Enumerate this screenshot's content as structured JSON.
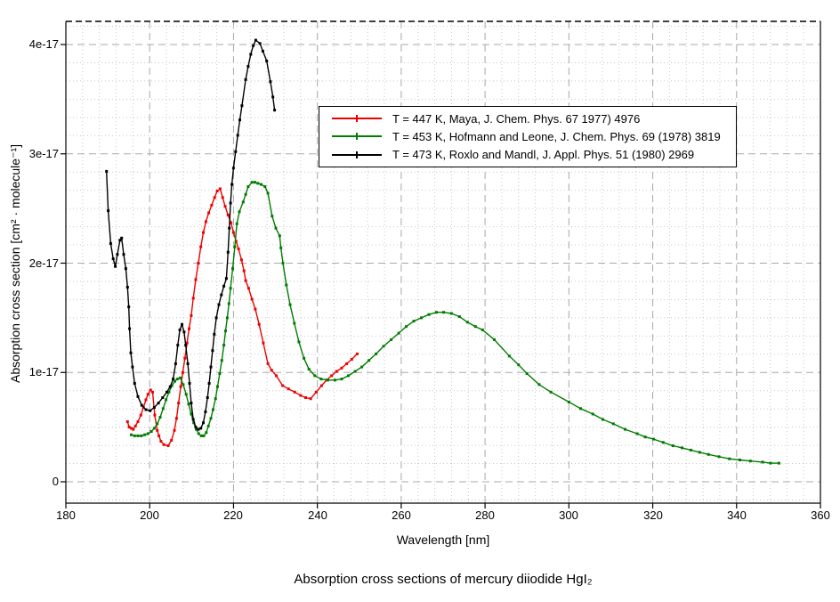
{
  "title": "Absorption cross sections of mercury diiodide HgI₂",
  "chart_data": {
    "type": "line",
    "title": "Absorption cross sections of mercury diiodide HgI₂",
    "xlabel": "Wavelength [nm]",
    "ylabel": "Absorption cross section [cm² · molecule⁻¹]",
    "xlim": [
      180,
      360
    ],
    "ylim": [
      0,
      4.2e-17
    ],
    "x_major_step_nm": 20,
    "x_minor_step_nm": 4,
    "y_major_step": "1e-17",
    "y_minors_per_major": 6,
    "grid": "major dashed gray + minor dotted light gray",
    "legend_position": "upper middle, boxed",
    "x_tick_labels": [
      "180",
      "200",
      "220",
      "240",
      "260",
      "280",
      "300",
      "320",
      "340",
      "360"
    ],
    "y_tick_labels": [
      "0",
      "1e-17",
      "2e-17",
      "3e-17",
      "4e-17"
    ],
    "values_unit": "1e-17 cm^2 / molecule",
    "series": [
      {
        "name": "T = 447 K, Maya, J. Chem. Phys. 67 1977) 4976",
        "color": "#ee0000",
        "marker": "square",
        "points": [
          [
            194.7,
            0.55
          ],
          [
            195.1,
            0.5
          ],
          [
            195.6,
            0.49
          ],
          [
            196.1,
            0.48
          ],
          [
            196.6,
            0.51
          ],
          [
            197.2,
            0.55
          ],
          [
            197.9,
            0.61
          ],
          [
            198.5,
            0.68
          ],
          [
            199.1,
            0.75
          ],
          [
            199.6,
            0.8
          ],
          [
            200.2,
            0.84
          ],
          [
            200.7,
            0.82
          ],
          [
            201.2,
            0.61
          ],
          [
            201.8,
            0.47
          ],
          [
            202.2,
            0.42
          ],
          [
            202.7,
            0.37
          ],
          [
            203.4,
            0.34
          ],
          [
            204.4,
            0.33
          ],
          [
            205.2,
            0.38
          ],
          [
            205.9,
            0.47
          ],
          [
            206.4,
            0.58
          ],
          [
            206.9,
            0.72
          ],
          [
            207.4,
            0.87
          ],
          [
            207.9,
            1.0
          ],
          [
            208.4,
            1.13
          ],
          [
            208.9,
            1.27
          ],
          [
            209.4,
            1.4
          ],
          [
            209.9,
            1.52
          ],
          [
            210.4,
            1.68
          ],
          [
            211.0,
            1.85
          ],
          [
            211.6,
            2.0
          ],
          [
            212.2,
            2.15
          ],
          [
            212.8,
            2.28
          ],
          [
            213.4,
            2.38
          ],
          [
            214.1,
            2.46
          ],
          [
            214.8,
            2.53
          ],
          [
            215.5,
            2.6
          ],
          [
            216.1,
            2.66
          ],
          [
            216.8,
            2.68
          ],
          [
            217.4,
            2.6
          ],
          [
            218.0,
            2.52
          ],
          [
            218.7,
            2.44
          ],
          [
            219.4,
            2.37
          ],
          [
            220.0,
            2.28
          ],
          [
            220.6,
            2.2
          ],
          [
            221.2,
            2.13
          ],
          [
            221.9,
            2.03
          ],
          [
            222.5,
            1.93
          ],
          [
            222.9,
            1.84
          ],
          [
            223.6,
            1.77
          ],
          [
            224.4,
            1.67
          ],
          [
            225.2,
            1.58
          ],
          [
            226.1,
            1.44
          ],
          [
            227.1,
            1.27
          ],
          [
            228.2,
            1.08
          ],
          [
            229.1,
            1.02
          ],
          [
            230.2,
            0.97
          ],
          [
            231.7,
            0.88
          ],
          [
            233.1,
            0.85
          ],
          [
            234.6,
            0.82
          ],
          [
            236.0,
            0.79
          ],
          [
            237.2,
            0.77
          ],
          [
            238.4,
            0.76
          ],
          [
            239.7,
            0.82
          ],
          [
            241.0,
            0.88
          ],
          [
            242.2,
            0.93
          ],
          [
            243.4,
            0.97
          ],
          [
            244.6,
            1.01
          ],
          [
            245.8,
            1.04
          ],
          [
            247.0,
            1.08
          ],
          [
            248.2,
            1.12
          ],
          [
            249.5,
            1.17
          ]
        ]
      },
      {
        "name": "T = 453 K, Hofmann and Leone, J. Chem. Phys. 69 (1978) 3819",
        "color": "#007c00",
        "marker": "square",
        "points": [
          [
            195.6,
            0.43
          ],
          [
            196.4,
            0.42
          ],
          [
            197.2,
            0.42
          ],
          [
            198.0,
            0.42
          ],
          [
            198.8,
            0.43
          ],
          [
            199.6,
            0.44
          ],
          [
            200.4,
            0.46
          ],
          [
            201.1,
            0.49
          ],
          [
            201.8,
            0.53
          ],
          [
            202.5,
            0.59
          ],
          [
            203.2,
            0.67
          ],
          [
            203.9,
            0.75
          ],
          [
            204.6,
            0.82
          ],
          [
            205.3,
            0.88
          ],
          [
            206.0,
            0.92
          ],
          [
            206.6,
            0.94
          ],
          [
            207.3,
            0.95
          ],
          [
            208.0,
            0.89
          ],
          [
            208.7,
            0.8
          ],
          [
            209.3,
            0.71
          ],
          [
            209.9,
            0.62
          ],
          [
            210.5,
            0.54
          ],
          [
            211.1,
            0.48
          ],
          [
            211.7,
            0.44
          ],
          [
            212.3,
            0.42
          ],
          [
            212.9,
            0.42
          ],
          [
            213.5,
            0.45
          ],
          [
            214.0,
            0.51
          ],
          [
            214.6,
            0.58
          ],
          [
            215.1,
            0.66
          ],
          [
            215.7,
            0.76
          ],
          [
            216.2,
            0.87
          ],
          [
            216.7,
            0.99
          ],
          [
            217.2,
            1.11
          ],
          [
            217.7,
            1.25
          ],
          [
            218.1,
            1.38
          ],
          [
            218.5,
            1.5
          ],
          [
            218.9,
            1.63
          ],
          [
            219.3,
            1.77
          ],
          [
            219.8,
            1.95
          ],
          [
            220.3,
            2.15
          ],
          [
            220.8,
            2.36
          ],
          [
            221.4,
            2.47
          ],
          [
            222.3,
            2.56
          ],
          [
            222.9,
            2.63
          ],
          [
            223.5,
            2.7
          ],
          [
            224.4,
            2.74
          ],
          [
            225.1,
            2.74
          ],
          [
            225.8,
            2.73
          ],
          [
            226.6,
            2.72
          ],
          [
            227.5,
            2.7
          ],
          [
            228.2,
            2.64
          ],
          [
            229.2,
            2.43
          ],
          [
            230.1,
            2.32
          ],
          [
            231.0,
            2.25
          ],
          [
            231.3,
            2.14
          ],
          [
            231.8,
            2.0
          ],
          [
            232.6,
            1.8
          ],
          [
            233.5,
            1.62
          ],
          [
            234.5,
            1.45
          ],
          [
            235.6,
            1.28
          ],
          [
            236.8,
            1.13
          ],
          [
            238.0,
            1.03
          ],
          [
            239.4,
            0.97
          ],
          [
            240.9,
            0.94
          ],
          [
            242.5,
            0.93
          ],
          [
            244.2,
            0.93
          ],
          [
            245.8,
            0.94
          ],
          [
            247.4,
            0.97
          ],
          [
            249.0,
            1.01
          ],
          [
            250.6,
            1.05
          ],
          [
            252.3,
            1.11
          ],
          [
            254.0,
            1.17
          ],
          [
            255.8,
            1.24
          ],
          [
            257.6,
            1.3
          ],
          [
            259.4,
            1.36
          ],
          [
            261.2,
            1.42
          ],
          [
            263.0,
            1.47
          ],
          [
            264.8,
            1.5
          ],
          [
            266.6,
            1.53
          ],
          [
            268.4,
            1.55
          ],
          [
            270.1,
            1.55
          ],
          [
            272.0,
            1.54
          ],
          [
            273.9,
            1.51
          ],
          [
            275.8,
            1.46
          ],
          [
            277.7,
            1.42
          ],
          [
            279.4,
            1.39
          ],
          [
            282.2,
            1.3
          ],
          [
            285.8,
            1.15
          ],
          [
            288.0,
            1.07
          ],
          [
            290.0,
            0.99
          ],
          [
            292.9,
            0.89
          ],
          [
            295.7,
            0.82
          ],
          [
            300.0,
            0.73
          ],
          [
            302.8,
            0.67
          ],
          [
            305.7,
            0.62
          ],
          [
            308.1,
            0.57
          ],
          [
            310.6,
            0.53
          ],
          [
            313.4,
            0.48
          ],
          [
            316.3,
            0.44
          ],
          [
            318.2,
            0.41
          ],
          [
            320.2,
            0.39
          ],
          [
            322.5,
            0.36
          ],
          [
            324.8,
            0.33
          ],
          [
            327.0,
            0.31
          ],
          [
            329.1,
            0.29
          ],
          [
            331.2,
            0.27
          ],
          [
            333.3,
            0.25
          ],
          [
            335.8,
            0.23
          ],
          [
            338.3,
            0.21
          ],
          [
            340.8,
            0.2
          ],
          [
            343.3,
            0.19
          ],
          [
            346.2,
            0.18
          ],
          [
            348.1,
            0.17
          ],
          [
            350.1,
            0.17
          ]
        ]
      },
      {
        "name": "T = 473 K, Roxlo and Mandl, J. Appl. Phys. 51 (1980) 2969",
        "color": "#000000",
        "marker": "square",
        "points": [
          [
            189.7,
            2.84
          ],
          [
            190.1,
            2.48
          ],
          [
            190.7,
            2.18
          ],
          [
            191.3,
            2.04
          ],
          [
            191.8,
            1.97
          ],
          [
            192.3,
            2.08
          ],
          [
            192.9,
            2.21
          ],
          [
            193.3,
            2.23
          ],
          [
            193.8,
            2.08
          ],
          [
            194.3,
            1.95
          ],
          [
            194.7,
            1.78
          ],
          [
            195.0,
            1.6
          ],
          [
            195.2,
            1.4
          ],
          [
            195.5,
            1.18
          ],
          [
            195.9,
            1.05
          ],
          [
            196.4,
            0.9
          ],
          [
            197.2,
            0.78
          ],
          [
            198.1,
            0.7
          ],
          [
            199.1,
            0.66
          ],
          [
            200.1,
            0.65
          ],
          [
            201.1,
            0.68
          ],
          [
            202.1,
            0.72
          ],
          [
            203.1,
            0.77
          ],
          [
            204.1,
            0.82
          ],
          [
            204.9,
            0.87
          ],
          [
            205.6,
            0.94
          ],
          [
            206.2,
            1.08
          ],
          [
            206.7,
            1.25
          ],
          [
            207.2,
            1.39
          ],
          [
            207.7,
            1.44
          ],
          [
            208.2,
            1.37
          ],
          [
            208.6,
            1.25
          ],
          [
            209.1,
            1.08
          ],
          [
            209.5,
            0.9
          ],
          [
            209.9,
            0.72
          ],
          [
            210.4,
            0.57
          ],
          [
            211.0,
            0.5
          ],
          [
            211.6,
            0.48
          ],
          [
            212.2,
            0.49
          ],
          [
            212.8,
            0.54
          ],
          [
            213.3,
            0.64
          ],
          [
            213.8,
            0.77
          ],
          [
            214.2,
            0.9
          ],
          [
            214.6,
            1.05
          ],
          [
            215.0,
            1.2
          ],
          [
            215.4,
            1.35
          ],
          [
            215.9,
            1.5
          ],
          [
            216.5,
            1.62
          ],
          [
            217.1,
            1.71
          ],
          [
            217.7,
            1.79
          ],
          [
            218.3,
            1.86
          ],
          [
            218.7,
            2.1
          ],
          [
            219.0,
            2.32
          ],
          [
            219.3,
            2.55
          ],
          [
            219.6,
            2.72
          ],
          [
            220.0,
            2.87
          ],
          [
            220.5,
            3.02
          ],
          [
            221.0,
            3.17
          ],
          [
            221.5,
            3.31
          ],
          [
            222.0,
            3.44
          ],
          [
            222.9,
            3.68
          ],
          [
            223.5,
            3.8
          ],
          [
            224.1,
            3.91
          ],
          [
            224.7,
            3.99
          ],
          [
            225.3,
            4.04
          ],
          [
            226.3,
            4.01
          ],
          [
            227.0,
            3.94
          ],
          [
            227.9,
            3.85
          ],
          [
            228.8,
            3.66
          ],
          [
            229.4,
            3.52
          ],
          [
            229.8,
            3.4
          ]
        ]
      }
    ]
  }
}
